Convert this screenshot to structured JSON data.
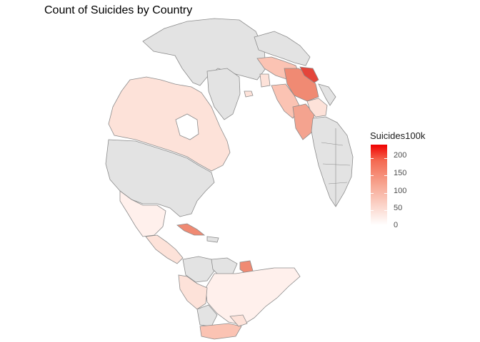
{
  "chart": {
    "title": "Count of Suicides by Country"
  },
  "legend": {
    "title": "Suicides100k",
    "ticks": [
      "0",
      "50",
      "100",
      "150",
      "200"
    ],
    "tick_values": [
      0,
      50,
      100,
      150,
      200
    ],
    "max": 232,
    "low_color": "#ffffff",
    "high_color": "#f00000",
    "na_color": "#e3e3e3",
    "border_color": "#8c8c8c"
  },
  "map": {
    "projection": "orthographic",
    "regions": [
      {
        "name": "Greenland",
        "value": null
      },
      {
        "name": "Canada",
        "value": 20
      },
      {
        "name": "United States",
        "value": null
      },
      {
        "name": "Mexico",
        "value": 8
      },
      {
        "name": "Cuba",
        "value": 115
      },
      {
        "name": "Guyana",
        "value": 110
      },
      {
        "name": "Brazil",
        "value": 10
      },
      {
        "name": "Russia",
        "value": null
      },
      {
        "name": "Eastern Europe",
        "value": 150
      },
      {
        "name": "Western Europe",
        "value": 60
      },
      {
        "name": "Africa",
        "value": null
      }
    ]
  }
}
